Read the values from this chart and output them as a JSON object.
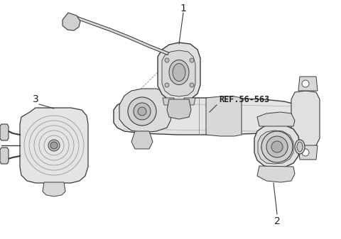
{
  "background_color": "#ffffff",
  "label_1": "1",
  "label_2": "2",
  "label_3": "3",
  "ref_text": "REF.56-563",
  "edge_color": "#3a3a3a",
  "light_gray": "#d8d8d8",
  "mid_gray": "#b8b8b8",
  "dark_gray": "#808080",
  "figsize": [
    4.8,
    3.37
  ],
  "dpi": 100
}
